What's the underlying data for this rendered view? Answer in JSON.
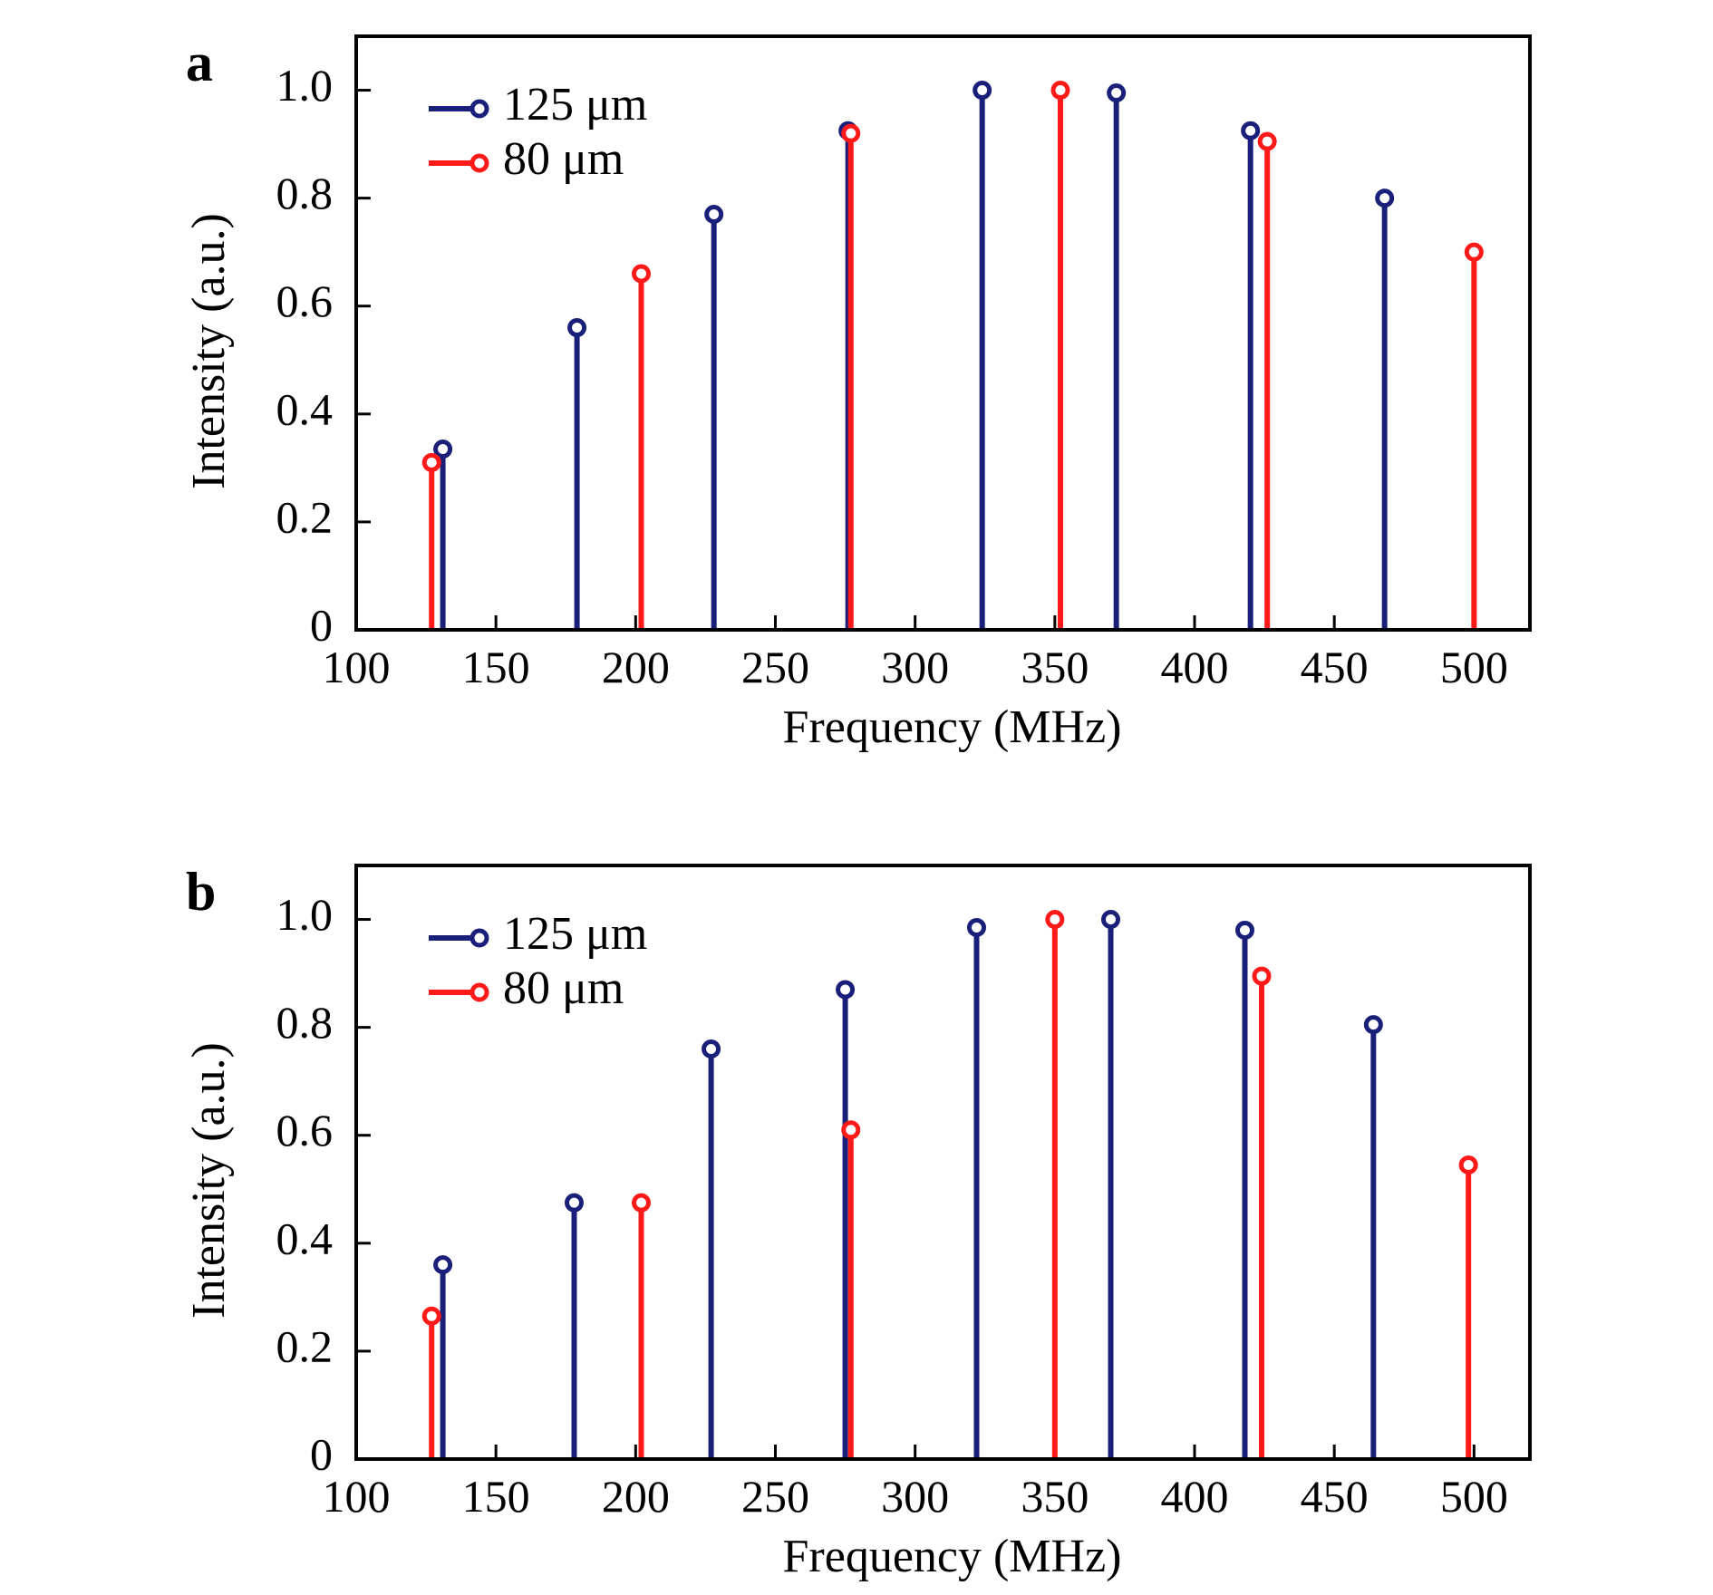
{
  "chart_data": [
    {
      "type": "stem",
      "panel_label": "a",
      "xlabel": "Frequency (MHz)",
      "ylabel": "Intensity (a.u.)",
      "xlim": [
        100,
        520
      ],
      "ylim": [
        0,
        1.1
      ],
      "xticks": [
        100,
        150,
        200,
        250,
        300,
        350,
        400,
        450,
        500
      ],
      "yticks": [
        0,
        0.2,
        0.4,
        0.6,
        0.8,
        1.0
      ],
      "ytick_labels": [
        "0",
        "0.2",
        "0.4",
        "0.6",
        "0.8",
        "1.0"
      ],
      "legend_position": "top-left",
      "series": [
        {
          "name": "125 μm",
          "color": "#1a1f7a",
          "x": [
            131,
            179,
            228,
            276,
            324,
            372,
            420,
            468
          ],
          "y": [
            0.335,
            0.56,
            0.77,
            0.925,
            1.0,
            0.995,
            0.925,
            0.8
          ]
        },
        {
          "name": "80 μm",
          "color": "#ff1a1a",
          "x": [
            127,
            202,
            277,
            352,
            426,
            500
          ],
          "y": [
            0.31,
            0.66,
            0.92,
            1.0,
            0.905,
            0.7
          ]
        }
      ]
    },
    {
      "type": "stem",
      "panel_label": "b",
      "xlabel": "Frequency (MHz)",
      "ylabel": "Intensity (a.u.)",
      "xlim": [
        100,
        520
      ],
      "ylim": [
        0,
        1.1
      ],
      "xticks": [
        100,
        150,
        200,
        250,
        300,
        350,
        400,
        450,
        500
      ],
      "yticks": [
        0,
        0.2,
        0.4,
        0.6,
        0.8,
        1.0
      ],
      "ytick_labels": [
        "0",
        "0.2",
        "0.4",
        "0.6",
        "0.8",
        "1.0"
      ],
      "legend_position": "top-left",
      "series": [
        {
          "name": "125 μm",
          "color": "#1a1f7a",
          "x": [
            131,
            178,
            227,
            275,
            322,
            370,
            418,
            464
          ],
          "y": [
            0.36,
            0.475,
            0.76,
            0.87,
            0.985,
            1.0,
            0.98,
            0.805
          ]
        },
        {
          "name": "80 μm",
          "color": "#ff1a1a",
          "x": [
            127,
            202,
            277,
            350,
            424,
            498
          ],
          "y": [
            0.265,
            0.475,
            0.61,
            1.0,
            0.895,
            0.545
          ]
        }
      ]
    }
  ]
}
